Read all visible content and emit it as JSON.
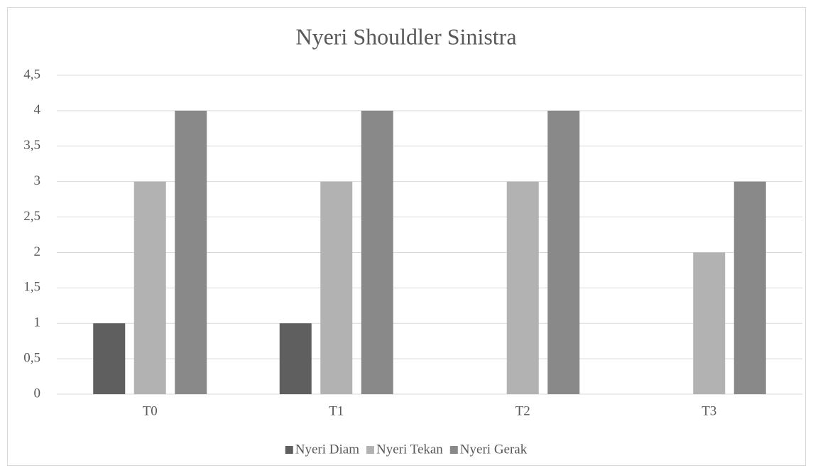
{
  "chart_data": {
    "type": "bar",
    "title": "Nyeri Shouldler Sinistra",
    "categories": [
      "T0",
      "T1",
      "T2",
      "T3"
    ],
    "series": [
      {
        "name": "Nyeri Diam",
        "color": "#5f5f5f",
        "values": [
          1,
          1,
          0,
          0
        ]
      },
      {
        "name": "Nyeri Tekan",
        "color": "#b2b2b2",
        "values": [
          3,
          3,
          3,
          2
        ]
      },
      {
        "name": "Nyeri Gerak",
        "color": "#898989",
        "values": [
          4,
          4,
          4,
          3
        ]
      }
    ],
    "ylim": [
      0,
      4.5
    ],
    "yticks": [
      0,
      {
        "value": 0.5,
        "label": "0,5"
      },
      1,
      {
        "value": 1.5,
        "label": "1,5"
      },
      2,
      {
        "value": 2.5,
        "label": "2,5"
      },
      3,
      {
        "value": 3.5,
        "label": "3,5"
      },
      4,
      {
        "value": 4.5,
        "label": "4,5"
      }
    ],
    "grid": true,
    "legend": "bottom"
  }
}
